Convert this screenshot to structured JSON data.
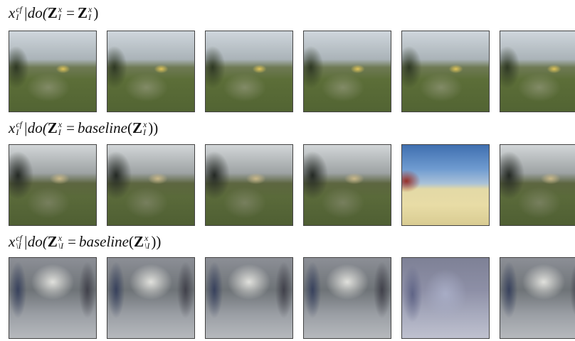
{
  "rows": [
    {
      "label": [
        "x",
        "cf",
        "I",
        "|do(",
        "Z",
        "x",
        "I",
        "=",
        "Z",
        "x",
        "I",
        ")"
      ]
    },
    {
      "label": [
        "x",
        "cf",
        "I",
        "|do(",
        "Z",
        "x",
        "I",
        "=",
        "baseline",
        "(",
        "Z",
        "x",
        "I",
        "))"
      ]
    },
    {
      "label": [
        "x",
        "cf",
        "\\I",
        "|do(",
        "Z",
        "x",
        "\\I",
        "=",
        "baseline",
        "(",
        "Z",
        "x",
        "\\I",
        "))"
      ]
    }
  ]
}
